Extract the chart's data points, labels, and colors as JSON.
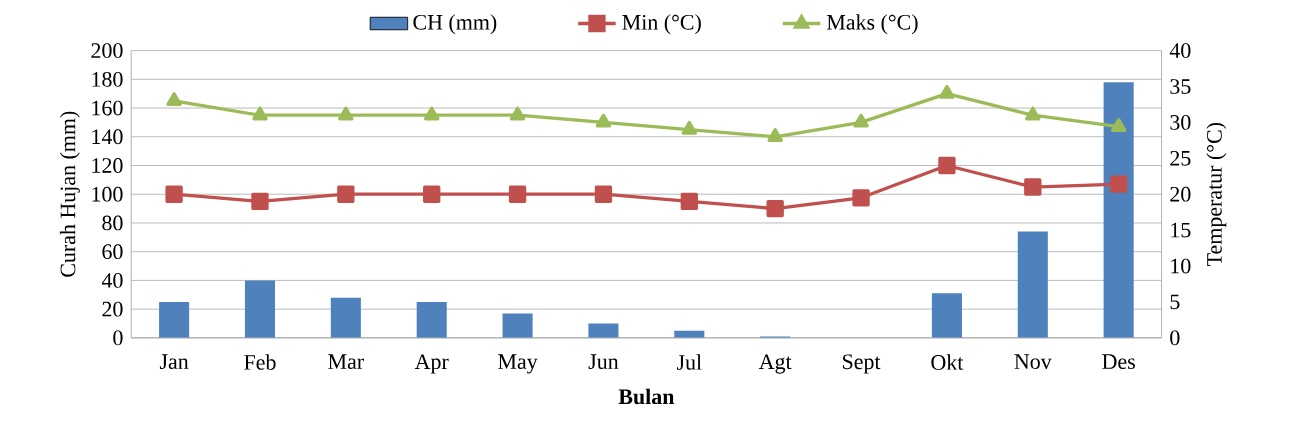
{
  "chart_data": {
    "type": "bar",
    "xlabel": "Bulan",
    "ylabel": "Curah Hujan (mm)",
    "y2label": "Temperatur (°C)",
    "categories": [
      "Jan",
      "Feb",
      "Mar",
      "Apr",
      "May",
      "Jun",
      "Jul",
      "Agt",
      "Sept",
      "Okt",
      "Nov",
      "Des"
    ],
    "series": [
      {
        "name": "CH (mm)",
        "color": "#4f81bd",
        "values": [
          25,
          40,
          28,
          25,
          17,
          10,
          5,
          1,
          0,
          31,
          74,
          178
        ]
      },
      {
        "name": "Min (°C)",
        "type": "line",
        "axis": "y2",
        "marker": "square",
        "color": "#c0504d",
        "values": [
          20,
          19,
          20,
          20,
          20,
          20,
          19,
          18,
          19.5,
          24,
          21,
          21.4
        ]
      },
      {
        "name": "Maks (°C)",
        "type": "line",
        "axis": "y2",
        "marker": "triangle",
        "color": "#9bbb59",
        "values": [
          33,
          31,
          31,
          31,
          31,
          30,
          29,
          28,
          30,
          34,
          31,
          29.4
        ]
      }
    ],
    "ylim": [
      0,
      200
    ],
    "yticks": [
      0,
      20,
      40,
      60,
      80,
      100,
      120,
      140,
      160,
      180,
      200
    ],
    "y2lim": [
      0,
      40
    ],
    "y2ticks": [
      0,
      5,
      10,
      15,
      20,
      25,
      30,
      35,
      40
    ],
    "grid": "y",
    "legend": "top"
  }
}
